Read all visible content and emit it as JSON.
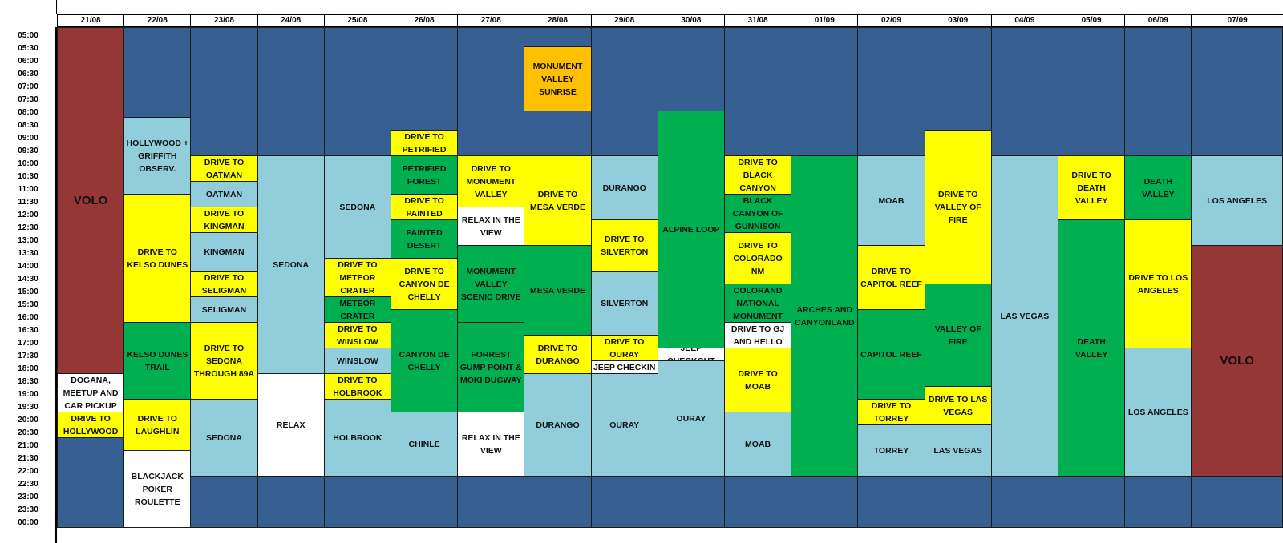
{
  "days": [
    "21/08",
    "22/08",
    "23/08",
    "24/08",
    "25/08",
    "26/08",
    "27/08",
    "28/08",
    "29/08",
    "30/08",
    "31/08",
    "01/09",
    "02/09",
    "03/09",
    "04/09",
    "05/09",
    "06/09",
    "07/09"
  ],
  "times": [
    "05:00",
    "05:30",
    "06:00",
    "06:30",
    "07:00",
    "07:30",
    "08:00",
    "08:30",
    "09:00",
    "09:30",
    "10:00",
    "10:30",
    "11:00",
    "11:30",
    "12:00",
    "12:30",
    "13:00",
    "13:30",
    "14:00",
    "14:30",
    "15:00",
    "15:30",
    "16:00",
    "16:30",
    "17:00",
    "17:30",
    "18:00",
    "18:30",
    "19:00",
    "19:30",
    "20:00",
    "20:30",
    "21:00",
    "21:30",
    "22:00",
    "22:30",
    "23:00",
    "23:30",
    "00:00"
  ],
  "colors": {
    "night": "#366092",
    "red": "#953735",
    "white": "#ffffff",
    "yellow": "#ffff00",
    "light": "#92cddc",
    "green": "#00b050",
    "orange": "#ffc000"
  },
  "schedule": [
    {
      "day": "21/08",
      "blocks": [
        {
          "start": "05:00",
          "end": "18:30",
          "label": "VOLO",
          "color": "red"
        },
        {
          "start": "18:30",
          "end": "20:00",
          "label": "DOGANA, MEETUP AND CAR PICKUP",
          "color": "white"
        },
        {
          "start": "20:00",
          "end": "21:00",
          "label": "DRIVE TO HOLLYWOOD",
          "color": "yellow"
        },
        {
          "start": "21:00",
          "end": "24:30",
          "label": "",
          "color": "night"
        }
      ]
    },
    {
      "day": "22/08",
      "blocks": [
        {
          "start": "05:00",
          "end": "08:30",
          "label": "",
          "color": "night"
        },
        {
          "start": "08:30",
          "end": "11:30",
          "label": "HOLLYWOOD + GRIFFITH OBSERV.",
          "color": "light"
        },
        {
          "start": "11:30",
          "end": "16:30",
          "label": "DRIVE TO KELSO DUNES",
          "color": "yellow"
        },
        {
          "start": "16:30",
          "end": "19:30",
          "label": "KELSO DUNES TRAIL",
          "color": "green"
        },
        {
          "start": "19:30",
          "end": "21:30",
          "label": "DRIVE TO LAUGHLIN",
          "color": "yellow"
        },
        {
          "start": "21:30",
          "end": "24:30",
          "label": "BLACKJACK POKER ROULETTE",
          "color": "white"
        }
      ]
    },
    {
      "day": "23/08",
      "blocks": [
        {
          "start": "05:00",
          "end": "10:00",
          "label": "",
          "color": "night"
        },
        {
          "start": "10:00",
          "end": "11:00",
          "label": "DRIVE TO OATMAN",
          "color": "yellow"
        },
        {
          "start": "11:00",
          "end": "12:00",
          "label": "OATMAN",
          "color": "light"
        },
        {
          "start": "12:00",
          "end": "13:00",
          "label": "DRIVE TO KINGMAN",
          "color": "yellow"
        },
        {
          "start": "13:00",
          "end": "14:30",
          "label": "KINGMAN",
          "color": "light"
        },
        {
          "start": "14:30",
          "end": "15:30",
          "label": "DRIVE TO SELIGMAN",
          "color": "yellow"
        },
        {
          "start": "15:30",
          "end": "16:30",
          "label": "SELIGMAN",
          "color": "light"
        },
        {
          "start": "16:30",
          "end": "19:30",
          "label": "DRIVE TO SEDONA THROUGH 89A",
          "color": "yellow"
        },
        {
          "start": "19:30",
          "end": "22:30",
          "label": "SEDONA",
          "color": "light"
        },
        {
          "start": "22:30",
          "end": "24:30",
          "label": "",
          "color": "night"
        }
      ]
    },
    {
      "day": "24/08",
      "blocks": [
        {
          "start": "05:00",
          "end": "10:00",
          "label": "",
          "color": "night"
        },
        {
          "start": "10:00",
          "end": "18:30",
          "label": "SEDONA",
          "color": "light"
        },
        {
          "start": "18:30",
          "end": "22:30",
          "label": "RELAX",
          "color": "white"
        },
        {
          "start": "22:30",
          "end": "24:30",
          "label": "",
          "color": "night"
        }
      ]
    },
    {
      "day": "25/08",
      "blocks": [
        {
          "start": "05:00",
          "end": "10:00",
          "label": "",
          "color": "night"
        },
        {
          "start": "10:00",
          "end": "14:00",
          "label": "SEDONA",
          "color": "light"
        },
        {
          "start": "14:00",
          "end": "15:30",
          "label": "DRIVE TO METEOR CRATER",
          "color": "yellow"
        },
        {
          "start": "15:30",
          "end": "16:30",
          "label": "METEOR CRATER",
          "color": "green"
        },
        {
          "start": "16:30",
          "end": "17:30",
          "label": "DRIVE TO WINSLOW",
          "color": "yellow"
        },
        {
          "start": "17:30",
          "end": "18:30",
          "label": "WINSLOW",
          "color": "light"
        },
        {
          "start": "18:30",
          "end": "19:30",
          "label": "DRIVE TO HOLBROOK",
          "color": "yellow"
        },
        {
          "start": "19:30",
          "end": "22:30",
          "label": "HOLBROOK",
          "color": "light"
        },
        {
          "start": "22:30",
          "end": "24:30",
          "label": "",
          "color": "night"
        }
      ]
    },
    {
      "day": "26/08",
      "blocks": [
        {
          "start": "05:00",
          "end": "09:00",
          "label": "",
          "color": "night"
        },
        {
          "start": "09:00",
          "end": "10:00",
          "label": "DRIVE TO PETRIFIED",
          "color": "yellow"
        },
        {
          "start": "10:00",
          "end": "11:30",
          "label": "PETRIFIED FOREST",
          "color": "green"
        },
        {
          "start": "11:30",
          "end": "12:30",
          "label": "DRIVE TO PAINTED",
          "color": "yellow"
        },
        {
          "start": "12:30",
          "end": "14:00",
          "label": "PAINTED DESERT",
          "color": "green"
        },
        {
          "start": "14:00",
          "end": "16:00",
          "label": "DRIVE TO CANYON DE CHELLY",
          "color": "yellow"
        },
        {
          "start": "16:00",
          "end": "20:00",
          "label": "CANYON DE CHELLY",
          "color": "green"
        },
        {
          "start": "20:00",
          "end": "22:30",
          "label": "CHINLE",
          "color": "light"
        },
        {
          "start": "22:30",
          "end": "24:30",
          "label": "",
          "color": "night"
        }
      ]
    },
    {
      "day": "27/08",
      "blocks": [
        {
          "start": "05:00",
          "end": "10:00",
          "label": "",
          "color": "night"
        },
        {
          "start": "10:00",
          "end": "12:00",
          "label": "DRIVE TO MONUMENT VALLEY",
          "color": "yellow"
        },
        {
          "start": "12:00",
          "end": "13:30",
          "label": "RELAX IN THE VIEW",
          "color": "white"
        },
        {
          "start": "13:30",
          "end": "16:30",
          "label": "MONUMENT VALLEY SCENIC DRIVE",
          "color": "green"
        },
        {
          "start": "16:30",
          "end": "20:00",
          "label": "FORREST GUMP POINT & MOKI DUGWAY",
          "color": "green"
        },
        {
          "start": "20:00",
          "end": "22:30",
          "label": "RELAX IN THE VIEW",
          "color": "white"
        },
        {
          "start": "22:30",
          "end": "24:30",
          "label": "",
          "color": "night"
        }
      ]
    },
    {
      "day": "28/08",
      "blocks": [
        {
          "start": "05:00",
          "end": "05:45",
          "label": "",
          "color": "night"
        },
        {
          "start": "05:45",
          "end": "08:15",
          "label": "MONUMENT VALLEY SUNRISE",
          "color": "orange"
        },
        {
          "start": "08:15",
          "end": "10:00",
          "label": "",
          "color": "night"
        },
        {
          "start": "10:00",
          "end": "13:30",
          "label": "DRIVE TO MESA VERDE",
          "color": "yellow"
        },
        {
          "start": "13:30",
          "end": "17:00",
          "label": "MESA VERDE",
          "color": "green"
        },
        {
          "start": "17:00",
          "end": "18:30",
          "label": "DRIVE TO DURANGO",
          "color": "yellow"
        },
        {
          "start": "18:30",
          "end": "22:30",
          "label": "DURANGO",
          "color": "light"
        },
        {
          "start": "22:30",
          "end": "24:30",
          "label": "",
          "color": "night"
        }
      ]
    },
    {
      "day": "29/08",
      "blocks": [
        {
          "start": "05:00",
          "end": "10:00",
          "label": "",
          "color": "night"
        },
        {
          "start": "10:00",
          "end": "12:30",
          "label": "DURANGO",
          "color": "light"
        },
        {
          "start": "12:30",
          "end": "14:30",
          "label": "DRIVE TO SILVERTON",
          "color": "yellow"
        },
        {
          "start": "14:30",
          "end": "17:00",
          "label": "SILVERTON",
          "color": "light"
        },
        {
          "start": "17:00",
          "end": "18:00",
          "label": "DRIVE TO OURAY",
          "color": "yellow"
        },
        {
          "start": "18:00",
          "end": "18:30",
          "label": "JEEP CHECKIN",
          "color": "white"
        },
        {
          "start": "18:30",
          "end": "22:30",
          "label": "OURAY",
          "color": "light"
        },
        {
          "start": "22:30",
          "end": "24:30",
          "label": "",
          "color": "night"
        }
      ]
    },
    {
      "day": "30/08",
      "blocks": [
        {
          "start": "05:00",
          "end": "08:15",
          "label": "",
          "color": "night"
        },
        {
          "start": "08:15",
          "end": "17:30",
          "label": "ALPINE LOOP",
          "color": "green"
        },
        {
          "start": "17:30",
          "end": "18:00",
          "label": "JEEP CHECKOUT",
          "color": "white"
        },
        {
          "start": "18:00",
          "end": "22:30",
          "label": "OURAY",
          "color": "light"
        },
        {
          "start": "22:30",
          "end": "24:30",
          "label": "",
          "color": "night"
        }
      ]
    },
    {
      "day": "31/08",
      "blocks": [
        {
          "start": "05:00",
          "end": "10:00",
          "label": "",
          "color": "night"
        },
        {
          "start": "10:00",
          "end": "11:30",
          "label": "DRIVE TO BLACK CANYON",
          "color": "yellow"
        },
        {
          "start": "11:30",
          "end": "13:00",
          "label": "BLACK CANYON OF GUNNISON",
          "color": "green"
        },
        {
          "start": "13:00",
          "end": "15:00",
          "label": "DRIVE TO COLORADO NM",
          "color": "yellow"
        },
        {
          "start": "15:00",
          "end": "16:30",
          "label": "COLORAND NATIONAL MONUMENT",
          "color": "green"
        },
        {
          "start": "16:30",
          "end": "17:30",
          "label": "DRIVE TO GJ AND HELLO",
          "color": "white"
        },
        {
          "start": "17:30",
          "end": "20:00",
          "label": "DRIVE TO MOAB",
          "color": "yellow"
        },
        {
          "start": "20:00",
          "end": "22:30",
          "label": "MOAB",
          "color": "light"
        },
        {
          "start": "22:30",
          "end": "24:30",
          "label": "",
          "color": "night"
        }
      ]
    },
    {
      "day": "01/09",
      "blocks": [
        {
          "start": "05:00",
          "end": "10:00",
          "label": "",
          "color": "night"
        },
        {
          "start": "10:00",
          "end": "22:30",
          "label": "ARCHES AND CANYONLAND",
          "color": "green"
        },
        {
          "start": "22:30",
          "end": "24:30",
          "label": "",
          "color": "night"
        }
      ]
    },
    {
      "day": "02/09",
      "blocks": [
        {
          "start": "05:00",
          "end": "10:00",
          "label": "",
          "color": "night"
        },
        {
          "start": "10:00",
          "end": "13:30",
          "label": "MOAB",
          "color": "light"
        },
        {
          "start": "13:30",
          "end": "16:00",
          "label": "DRIVE TO CAPITOL REEF",
          "color": "yellow"
        },
        {
          "start": "16:00",
          "end": "19:30",
          "label": "CAPITOL REEF",
          "color": "green"
        },
        {
          "start": "19:30",
          "end": "20:30",
          "label": "DRIVE TO TORREY",
          "color": "yellow"
        },
        {
          "start": "20:30",
          "end": "22:30",
          "label": "TORREY",
          "color": "light"
        },
        {
          "start": "22:30",
          "end": "24:30",
          "label": "",
          "color": "night"
        }
      ]
    },
    {
      "day": "03/09",
      "blocks": [
        {
          "start": "05:00",
          "end": "09:00",
          "label": "",
          "color": "night"
        },
        {
          "start": "09:00",
          "end": "15:00",
          "label": "DRIVE TO VALLEY OF FIRE",
          "color": "yellow"
        },
        {
          "start": "15:00",
          "end": "19:00",
          "label": "VALLEY OF FIRE",
          "color": "green"
        },
        {
          "start": "19:00",
          "end": "20:30",
          "label": "DRIVE TO LAS VEGAS",
          "color": "yellow"
        },
        {
          "start": "20:30",
          "end": "22:30",
          "label": "LAS VEGAS",
          "color": "light"
        },
        {
          "start": "22:30",
          "end": "24:30",
          "label": "",
          "color": "night"
        }
      ]
    },
    {
      "day": "04/09",
      "blocks": [
        {
          "start": "05:00",
          "end": "10:00",
          "label": "",
          "color": "night"
        },
        {
          "start": "10:00",
          "end": "22:30",
          "label": "LAS VEGAS",
          "color": "light"
        },
        {
          "start": "22:30",
          "end": "24:30",
          "label": "",
          "color": "night"
        }
      ]
    },
    {
      "day": "05/09",
      "blocks": [
        {
          "start": "05:00",
          "end": "10:00",
          "label": "",
          "color": "night"
        },
        {
          "start": "10:00",
          "end": "12:30",
          "label": "DRIVE TO DEATH VALLEY",
          "color": "yellow"
        },
        {
          "start": "12:30",
          "end": "22:30",
          "label": "DEATH VALLEY",
          "color": "green"
        },
        {
          "start": "22:30",
          "end": "24:30",
          "label": "",
          "color": "night"
        }
      ]
    },
    {
      "day": "06/09",
      "blocks": [
        {
          "start": "05:00",
          "end": "10:00",
          "label": "",
          "color": "night"
        },
        {
          "start": "10:00",
          "end": "12:30",
          "label": "DEATH VALLEY",
          "color": "green"
        },
        {
          "start": "12:30",
          "end": "17:30",
          "label": "DRIVE TO LOS ANGELES",
          "color": "yellow"
        },
        {
          "start": "17:30",
          "end": "22:30",
          "label": "LOS ANGELES",
          "color": "light"
        },
        {
          "start": "22:30",
          "end": "24:30",
          "label": "",
          "color": "night"
        }
      ]
    },
    {
      "day": "07/09",
      "blocks": [
        {
          "start": "05:00",
          "end": "10:00",
          "label": "",
          "color": "night"
        },
        {
          "start": "10:00",
          "end": "13:30",
          "label": "LOS ANGELES",
          "color": "light"
        },
        {
          "start": "13:30",
          "end": "22:30",
          "label": "VOLO",
          "color": "red"
        },
        {
          "start": "22:30",
          "end": "24:30",
          "label": "",
          "color": "night"
        }
      ]
    }
  ]
}
